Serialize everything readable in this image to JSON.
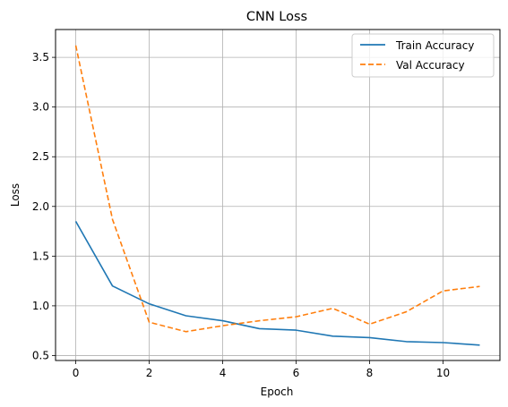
{
  "chart_data": {
    "type": "line",
    "title": "CNN Loss",
    "xlabel": "Epoch",
    "ylabel": "Loss",
    "xlim": [
      -0.55,
      11.55
    ],
    "ylim": [
      0.45,
      3.78
    ],
    "xticks": [
      0,
      2,
      4,
      6,
      8,
      10
    ],
    "yticks": [
      0.5,
      1.0,
      1.5,
      2.0,
      2.5,
      3.0,
      3.5
    ],
    "xtick_labels": [
      "0",
      "2",
      "4",
      "6",
      "8",
      "10"
    ],
    "ytick_labels": [
      "0.5",
      "1.0",
      "1.5",
      "2.0",
      "2.5",
      "3.0",
      "3.5"
    ],
    "grid": true,
    "legend_position": "top-right",
    "x": [
      0,
      1,
      2,
      3,
      4,
      5,
      6,
      7,
      8,
      9,
      10,
      11
    ],
    "series": [
      {
        "name": "Train Accuracy",
        "color": "#1f77b4",
        "linestyle": "solid",
        "values": [
          1.85,
          1.2,
          1.02,
          0.9,
          0.85,
          0.77,
          0.755,
          0.695,
          0.68,
          0.64,
          0.63,
          0.605
        ]
      },
      {
        "name": "Val Accuracy",
        "color": "#ff7f0e",
        "linestyle": "dashed",
        "values": [
          3.62,
          1.87,
          0.835,
          0.74,
          0.8,
          0.85,
          0.89,
          0.975,
          0.815,
          0.94,
          1.15,
          1.195
        ]
      }
    ]
  }
}
